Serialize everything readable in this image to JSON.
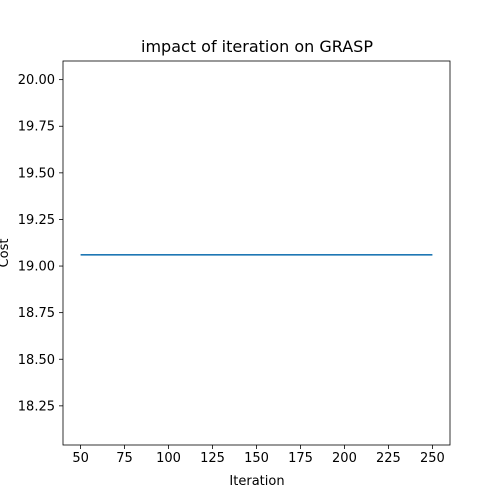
{
  "chart_data": {
    "type": "line",
    "title": "impact of iteration on GRASP",
    "xlabel": "Iteration",
    "ylabel": "Cost",
    "xlim": [
      40,
      260
    ],
    "ylim": [
      18.04,
      20.1
    ],
    "xticks": [
      50,
      75,
      100,
      125,
      150,
      175,
      200,
      225,
      250
    ],
    "yticks": [
      18.25,
      18.5,
      18.75,
      19.0,
      19.25,
      19.5,
      19.75,
      20.0
    ],
    "ytick_labels": [
      "18.25",
      "18.50",
      "18.75",
      "19.00",
      "19.25",
      "19.50",
      "19.75",
      "20.00"
    ],
    "grid": false,
    "series": [
      {
        "x": [
          50,
          250
        ],
        "y": [
          19.06,
          19.06
        ],
        "color": "#1f77b4"
      }
    ]
  }
}
